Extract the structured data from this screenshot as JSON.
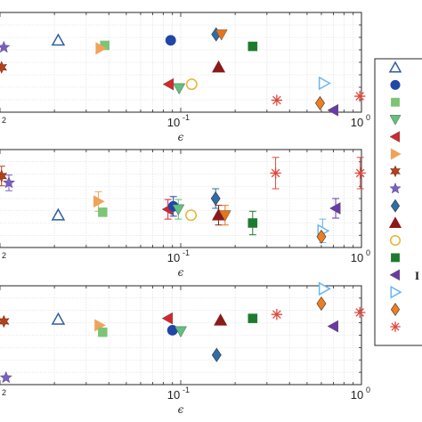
{
  "chart_data": [
    {
      "type": "scatter",
      "xlabel": "ϵ",
      "xscale": "log",
      "xlim": [
        0.01,
        1
      ],
      "x_tick_labels": [
        "10",
        "-1",
        "10",
        "0"
      ],
      "left_tick_fragment": "2",
      "grid": true,
      "points": [
        {
          "marker": "star",
          "color": "#7B5FBF",
          "x": 0.0105,
          "y": 0.65
        },
        {
          "marker": "hexstar",
          "color": "#B5401A",
          "x": 0.0102,
          "y": 0.45
        },
        {
          "marker": "triangle-up-open",
          "color": "#2E5E9E",
          "x": 0.021,
          "y": 0.72
        },
        {
          "marker": "square",
          "color": "#7CC576",
          "x": 0.038,
          "y": 0.67
        },
        {
          "marker": "triangle-right",
          "color": "#F0A35A",
          "x": 0.036,
          "y": 0.64
        },
        {
          "marker": "circle",
          "color": "#2046A8",
          "x": 0.088,
          "y": 0.72
        },
        {
          "marker": "triangle-left",
          "color": "#D8262A",
          "x": 0.086,
          "y": 0.28
        },
        {
          "marker": "triangle-down",
          "color": "#5FC27E",
          "x": 0.098,
          "y": 0.24
        },
        {
          "marker": "circle-open",
          "color": "#E4B33A",
          "x": 0.115,
          "y": 0.28
        },
        {
          "marker": "diamond",
          "color": "#2D6EA8",
          "x": 0.157,
          "y": 0.78
        },
        {
          "marker": "triangle-down",
          "color": "#E8731A",
          "x": 0.168,
          "y": 0.78
        },
        {
          "marker": "triangle-up",
          "color": "#8B1A1A",
          "x": 0.162,
          "y": 0.45
        },
        {
          "marker": "square",
          "color": "#1E7A2E",
          "x": 0.25,
          "y": 0.66
        },
        {
          "marker": "asterisk",
          "color": "#E2473A",
          "x": 0.34,
          "y": 0.12
        },
        {
          "marker": "triangle-right-open",
          "color": "#6BB6F2",
          "x": 0.62,
          "y": 0.29
        },
        {
          "marker": "diamond",
          "color": "#F07E20",
          "x": 0.59,
          "y": 0.09
        },
        {
          "marker": "triangle-left",
          "color": "#6B3AA6",
          "x": 0.7,
          "y": 0.02
        },
        {
          "marker": "asterisk",
          "color": "#E2473A",
          "x": 0.98,
          "y": 0.16
        }
      ]
    },
    {
      "type": "scatter",
      "xlabel": "ϵ",
      "xscale": "log",
      "xlim": [
        0.01,
        1
      ],
      "x_tick_labels": [
        "10",
        "-1",
        "10",
        "0"
      ],
      "left_tick_fragment": "2",
      "grid": true,
      "points": [
        {
          "marker": "hexstar",
          "color": "#B5401A",
          "x": 0.0102,
          "y": 0.73,
          "err": 0.1
        },
        {
          "marker": "star",
          "color": "#7B5FBF",
          "x": 0.0112,
          "y": 0.66,
          "err": 0.08
        },
        {
          "marker": "triangle-up-open",
          "color": "#2E5E9E",
          "x": 0.021,
          "y": 0.33
        },
        {
          "marker": "triangle-right",
          "color": "#F0A35A",
          "x": 0.035,
          "y": 0.47,
          "err": 0.1
        },
        {
          "marker": "square",
          "color": "#7CC576",
          "x": 0.037,
          "y": 0.36
        },
        {
          "marker": "triangle-left",
          "color": "#D8262A",
          "x": 0.085,
          "y": 0.39,
          "err": 0.1
        },
        {
          "marker": "circle",
          "color": "#2046A8",
          "x": 0.091,
          "y": 0.42,
          "err": 0.1
        },
        {
          "marker": "triangle-down",
          "color": "#5FC27E",
          "x": 0.097,
          "y": 0.39,
          "err": 0.1
        },
        {
          "marker": "circle-open",
          "color": "#E4B33A",
          "x": 0.114,
          "y": 0.33
        },
        {
          "marker": "diamond",
          "color": "#2D6EA8",
          "x": 0.156,
          "y": 0.5,
          "err": 0.1
        },
        {
          "marker": "triangle-up",
          "color": "#8B1A1A",
          "x": 0.162,
          "y": 0.33,
          "err": 0.1
        },
        {
          "marker": "triangle-down",
          "color": "#E8731A",
          "x": 0.176,
          "y": 0.33,
          "err": 0.1
        },
        {
          "marker": "square",
          "color": "#1E7A2E",
          "x": 0.25,
          "y": 0.25,
          "err": 0.12
        },
        {
          "marker": "asterisk",
          "color": "#E2473A",
          "x": 0.335,
          "y": 0.76,
          "err": 0.16
        },
        {
          "marker": "triangle-right-open",
          "color": "#6BB6F2",
          "x": 0.61,
          "y": 0.17,
          "err": 0.12
        },
        {
          "marker": "diamond",
          "color": "#F07E20",
          "x": 0.6,
          "y": 0.11
        },
        {
          "marker": "triangle-left",
          "color": "#6B3AA6",
          "x": 0.72,
          "y": 0.4,
          "err": 0.1
        },
        {
          "marker": "asterisk",
          "color": "#E2473A",
          "x": 0.985,
          "y": 0.76,
          "err": 0.16
        }
      ]
    },
    {
      "type": "scatter",
      "xlabel": "ϵ",
      "xscale": "log",
      "xlim": [
        0.01,
        1
      ],
      "x_tick_labels": [
        "10",
        "-1",
        "10",
        "0"
      ],
      "left_tick_fragment": "2",
      "grid": true,
      "points": [
        {
          "marker": "hexstar",
          "color": "#B5401A",
          "x": 0.0105,
          "y": 0.64
        },
        {
          "marker": "star",
          "color": "#7B5FBF",
          "x": 0.0108,
          "y": 0.07
        },
        {
          "marker": "triangle-up-open",
          "color": "#2E5E9E",
          "x": 0.021,
          "y": 0.66
        },
        {
          "marker": "triangle-right",
          "color": "#F0A35A",
          "x": 0.0355,
          "y": 0.6
        },
        {
          "marker": "square",
          "color": "#7CC576",
          "x": 0.037,
          "y": 0.53
        },
        {
          "marker": "triangle-left",
          "color": "#D8262A",
          "x": 0.085,
          "y": 0.67
        },
        {
          "marker": "circle",
          "color": "#2046A8",
          "x": 0.09,
          "y": 0.55
        },
        {
          "marker": "triangle-down",
          "color": "#5FC27E",
          "x": 0.1,
          "y": 0.54
        },
        {
          "marker": "triangle-up",
          "color": "#8B1A1A",
          "x": 0.166,
          "y": 0.65
        },
        {
          "marker": "diamond",
          "color": "#2D6EA8",
          "x": 0.158,
          "y": 0.3
        },
        {
          "marker": "square",
          "color": "#1E7A2E",
          "x": 0.25,
          "y": 0.67
        },
        {
          "marker": "asterisk",
          "color": "#E2473A",
          "x": 0.34,
          "y": 0.71
        },
        {
          "marker": "triangle-right-open",
          "color": "#6BB6F2",
          "x": 0.62,
          "y": 0.97
        },
        {
          "marker": "diamond",
          "color": "#F07E20",
          "x": 0.6,
          "y": 0.82
        },
        {
          "marker": "triangle-left",
          "color": "#6B3AA6",
          "x": 0.7,
          "y": 0.59
        },
        {
          "marker": "asterisk",
          "color": "#E2473A",
          "x": 0.98,
          "y": 0.73
        }
      ]
    }
  ],
  "legend": {
    "fragment_text": "I",
    "entries": [
      {
        "marker": "triangle-up-open",
        "color": "#2E5E9E"
      },
      {
        "marker": "circle",
        "color": "#2046A8"
      },
      {
        "marker": "square",
        "color": "#7CC576"
      },
      {
        "marker": "triangle-down",
        "color": "#5FC27E"
      },
      {
        "marker": "triangle-left",
        "color": "#D8262A"
      },
      {
        "marker": "triangle-right",
        "color": "#F0A35A"
      },
      {
        "marker": "hexstar",
        "color": "#B5401A"
      },
      {
        "marker": "star",
        "color": "#7B5FBF"
      },
      {
        "marker": "diamond",
        "color": "#2D6EA8"
      },
      {
        "marker": "triangle-up",
        "color": "#8B1A1A"
      },
      {
        "marker": "circle-open",
        "color": "#E4B33A"
      },
      {
        "marker": "square",
        "color": "#1E7A2E"
      },
      {
        "marker": "triangle-left",
        "color": "#6B3AA6"
      },
      {
        "marker": "triangle-right-open",
        "color": "#6BB6F2"
      },
      {
        "marker": "diamond",
        "color": "#F07E20"
      },
      {
        "marker": "asterisk",
        "color": "#E2473A"
      }
    ]
  }
}
